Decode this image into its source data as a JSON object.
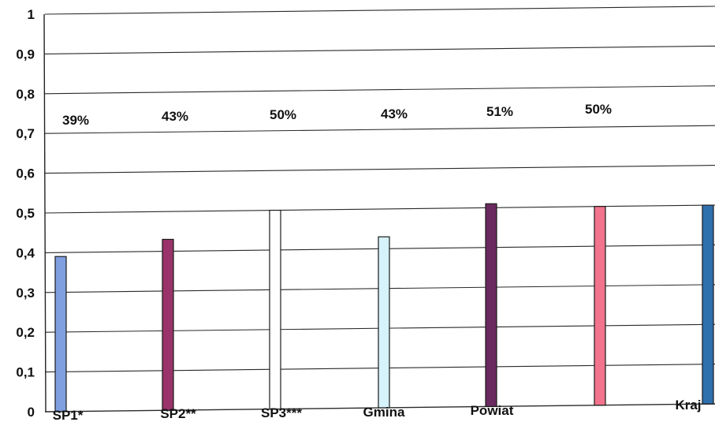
{
  "chart_data": {
    "type": "bar",
    "title": "",
    "xlabel": "",
    "ylabel": "",
    "ylim": [
      0,
      1
    ],
    "grid": true,
    "yticks": [
      "0",
      "0,1",
      "0,2",
      "0,3",
      "0,4",
      "0,5",
      "0,6",
      "0,7",
      "0,8",
      "0,9",
      "1"
    ],
    "categories": [
      "SP1*",
      "SP2**",
      "SP3***",
      "Gmina",
      "Powiat",
      "",
      "Kraj"
    ],
    "values": [
      0.39,
      0.43,
      0.5,
      0.43,
      0.51,
      0.5,
      0.5
    ],
    "data_labels": [
      "39%",
      "43%",
      "50%",
      "43%",
      "51%",
      "50%",
      ""
    ],
    "colors": [
      "#7f9fe0",
      "#99336a",
      "#ffffff",
      "#d6f2fb",
      "#6a2a5f",
      "#f2738d",
      "#2f6fae"
    ]
  }
}
